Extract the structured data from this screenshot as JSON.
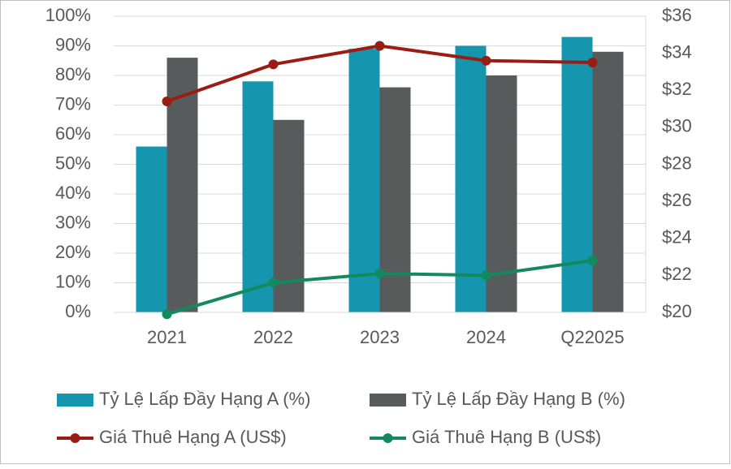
{
  "chart_data": {
    "type": "bar",
    "categories": [
      "2021",
      "2022",
      "2023",
      "2024",
      "Q22025"
    ],
    "series": [
      {
        "name": "Tỷ Lệ Lấp Đầy Hạng A (%)",
        "type": "bar",
        "color": "#1595ae",
        "values": [
          56,
          78,
          89,
          90,
          93
        ]
      },
      {
        "name": "Tỷ Lệ Lấp Đầy Hạng B (%)",
        "type": "bar",
        "color": "#575b5c",
        "values": [
          86,
          65,
          76,
          80,
          88
        ]
      },
      {
        "name": "Giá Thuê Hạng A (US$)",
        "type": "line",
        "axis": "y2",
        "color": "#9b1c12",
        "values": [
          31.4,
          33.4,
          34.4,
          33.6,
          33.5
        ]
      },
      {
        "name": "Giá Thuê Hạng B (US$)",
        "type": "line",
        "axis": "y2",
        "color": "#138a5e",
        "values": [
          19.9,
          21.6,
          22.1,
          22.0,
          22.8
        ]
      }
    ],
    "ylim": [
      0,
      100
    ],
    "yticks": [
      {
        "value": 0,
        "label": "0%"
      },
      {
        "value": 10,
        "label": "10%"
      },
      {
        "value": 20,
        "label": "20%"
      },
      {
        "value": 30,
        "label": "30%"
      },
      {
        "value": 40,
        "label": "40%"
      },
      {
        "value": 50,
        "label": "50%"
      },
      {
        "value": 60,
        "label": "60%"
      },
      {
        "value": 70,
        "label": "70%"
      },
      {
        "value": 80,
        "label": "80%"
      },
      {
        "value": 90,
        "label": "90%"
      },
      {
        "value": 100,
        "label": "100%"
      }
    ],
    "y2lim": [
      20,
      36
    ],
    "y2ticks": [
      {
        "value": 20,
        "label": "$20"
      },
      {
        "value": 22,
        "label": "$22"
      },
      {
        "value": 24,
        "label": "$24"
      },
      {
        "value": 26,
        "label": "$26"
      },
      {
        "value": 28,
        "label": "$28"
      },
      {
        "value": 30,
        "label": "$30"
      },
      {
        "value": 32,
        "label": "$32"
      },
      {
        "value": 34,
        "label": "$34"
      },
      {
        "value": 36,
        "label": "$36"
      }
    ],
    "grid": true,
    "legend": "bottom"
  }
}
